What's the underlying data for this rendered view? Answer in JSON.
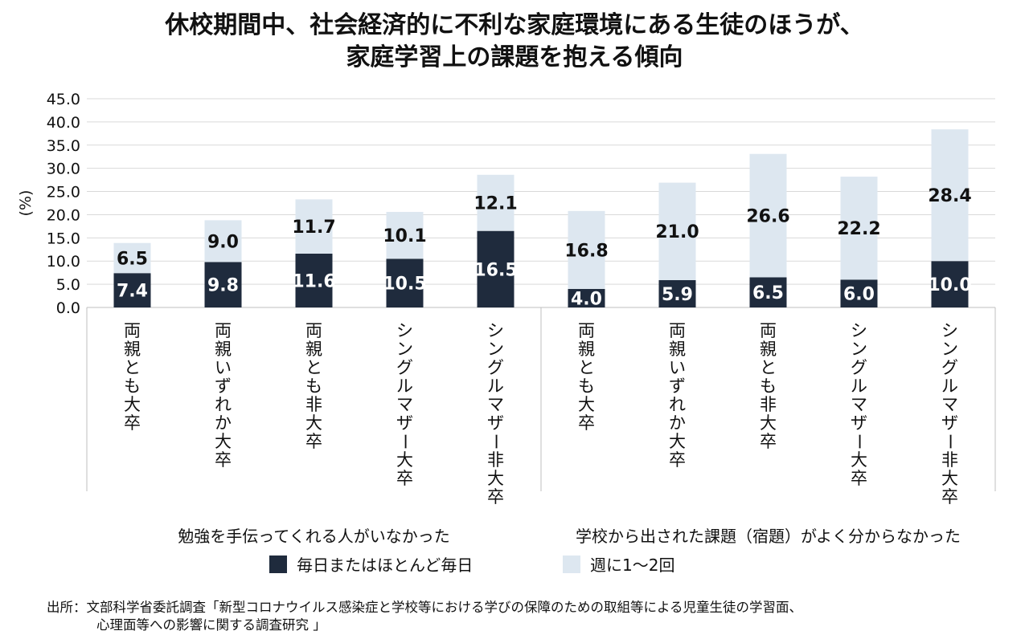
{
  "chart_data": {
    "type": "bar",
    "stacked": true,
    "title_lines": [
      "休校期間中、社会経済的に不利な家庭環境にある生徒のほうが、",
      "家庭学習上の課題を抱える傾向"
    ],
    "ylabel": "(%)",
    "ylim": [
      0,
      45
    ],
    "yticks": [
      "0.0",
      "5.0",
      "10.0",
      "15.0",
      "20.0",
      "25.0",
      "30.0",
      "35.0",
      "40.0",
      "45.0"
    ],
    "grid": true,
    "groups": [
      {
        "label": "勉強を手伝ってくれる人がいなかった",
        "categories": [
          "両親とも大卒",
          "両親いずれか大卒",
          "両親とも非大卒",
          "シングルマザー大卒",
          "シングルマザー非大卒"
        ],
        "daily": [
          7.4,
          9.8,
          11.6,
          10.5,
          16.5
        ],
        "weekly": [
          6.5,
          9.0,
          11.7,
          10.1,
          12.1
        ]
      },
      {
        "label": "学校から出された課題（宿題）がよく分からなかった",
        "categories": [
          "両親とも大卒",
          "両親いずれか大卒",
          "両親とも非大卒",
          "シングルマザー大卒",
          "シングルマザー非大卒"
        ],
        "daily": [
          4.0,
          5.9,
          6.5,
          6.0,
          10.0
        ],
        "weekly": [
          16.8,
          21.0,
          26.6,
          22.2,
          28.4
        ]
      }
    ],
    "series": [
      {
        "name": "毎日またはほとんど毎日",
        "color": "#1f2b3d"
      },
      {
        "name": "週に1〜2回",
        "color": "#dde7f0"
      }
    ],
    "legend_position": "bottom"
  },
  "source": {
    "line1": "出所：文部科学省委託調査「新型コロナウイルス感染症と学校等における学びの保障のための取組等による児童生徒の学習面、",
    "line2": "心理面等への影響に関する調査研究 」"
  }
}
